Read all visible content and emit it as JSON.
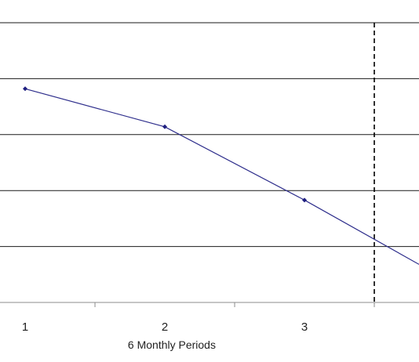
{
  "chart_data": {
    "type": "line",
    "title": "",
    "xlabel": "6 Monthly Periods",
    "ylabel": "",
    "x_tick_labels": [
      "1",
      "2",
      "3"
    ],
    "x_range": [
      0.82,
      3.82
    ],
    "y_range": [
      0,
      5
    ],
    "y_gridlines": [
      1,
      2,
      3,
      4,
      5
    ],
    "series": [
      {
        "x": [
          1,
          2,
          3,
          3.82
        ],
        "y": [
          3.82,
          3.14,
          1.83,
          0.68
        ],
        "markers": [
          true,
          true,
          true,
          false
        ],
        "color": "#2e2e8c"
      }
    ],
    "reference_line_x": 3.5,
    "reference_line_style": "dashed",
    "grid": true,
    "legend": "none"
  }
}
